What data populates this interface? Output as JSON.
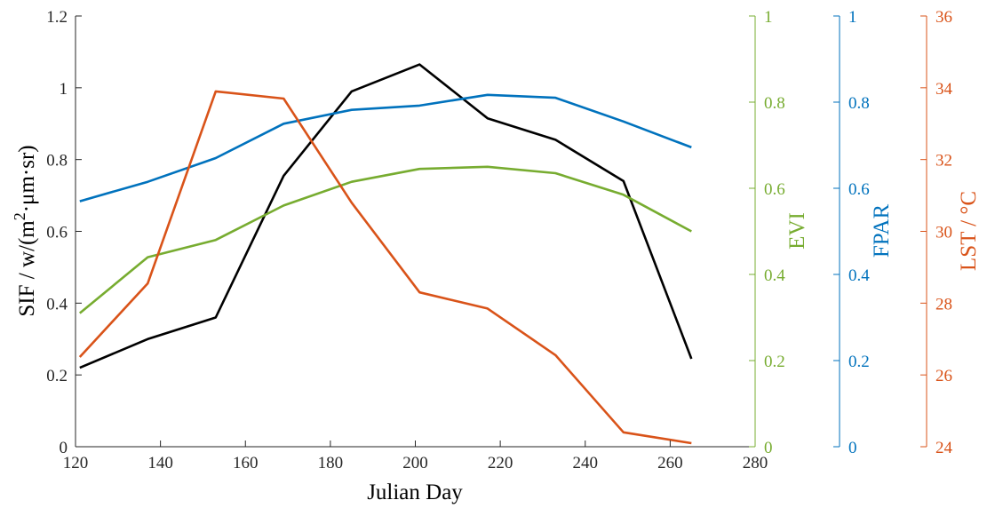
{
  "chart_data": {
    "type": "line",
    "xlabel": "Julian Day",
    "xlim": [
      120,
      280
    ],
    "xticks": [
      120,
      140,
      160,
      180,
      200,
      220,
      240,
      260,
      280
    ],
    "x": [
      121,
      137,
      153,
      169,
      185,
      201,
      217,
      233,
      249,
      265
    ],
    "axes": [
      {
        "id": "sif",
        "label": "SIF / w/(m²·μm·sr)",
        "ylim": [
          0,
          1.2
        ],
        "ticks": [
          0,
          0.2,
          0.4,
          0.6,
          0.8,
          1,
          1.2
        ],
        "tick_labels": [
          "0",
          "0.2",
          "0.4",
          "0.6",
          "0.8",
          "1",
          "1.2"
        ],
        "color": "#000000"
      },
      {
        "id": "evi",
        "label": "EVI",
        "ylim": [
          0,
          1
        ],
        "ticks": [
          0,
          0.2,
          0.4,
          0.6,
          0.8,
          1
        ],
        "tick_labels": [
          "0",
          "0.2",
          "0.4",
          "0.6",
          "0.8",
          "1"
        ],
        "color": "#77ac30"
      },
      {
        "id": "fpar",
        "label": "FPAR",
        "ylim": [
          0,
          1
        ],
        "ticks": [
          0,
          0.2,
          0.4,
          0.6,
          0.8,
          1
        ],
        "tick_labels": [
          "0",
          "0.2",
          "0.4",
          "0.6",
          "0.8",
          "1"
        ],
        "color": "#0072bd"
      },
      {
        "id": "lst",
        "label": "LST / °C",
        "ylim": [
          24,
          36
        ],
        "ticks": [
          24,
          26,
          28,
          30,
          32,
          34,
          36
        ],
        "tick_labels": [
          "24",
          "26",
          "28",
          "30",
          "32",
          "34",
          "36"
        ],
        "color": "#d95319"
      }
    ],
    "series": [
      {
        "axis": "sif",
        "color": "#000000",
        "values": [
          0.22,
          0.3,
          0.36,
          0.755,
          0.99,
          1.065,
          0.915,
          0.855,
          0.74,
          0.245
        ]
      },
      {
        "axis": "evi",
        "color": "#77ac30",
        "values": [
          0.31,
          0.44,
          0.48,
          0.56,
          0.615,
          0.645,
          0.65,
          0.635,
          0.585,
          0.5
        ]
      },
      {
        "axis": "fpar",
        "color": "#0072bd",
        "values": [
          0.57,
          0.615,
          0.67,
          0.75,
          0.782,
          0.792,
          0.817,
          0.81,
          0.755,
          0.695
        ]
      },
      {
        "axis": "lst",
        "color": "#d95319",
        "values": [
          26.5,
          28.55,
          33.9,
          33.7,
          30.8,
          28.3,
          27.85,
          26.55,
          24.4,
          24.1
        ]
      }
    ]
  }
}
